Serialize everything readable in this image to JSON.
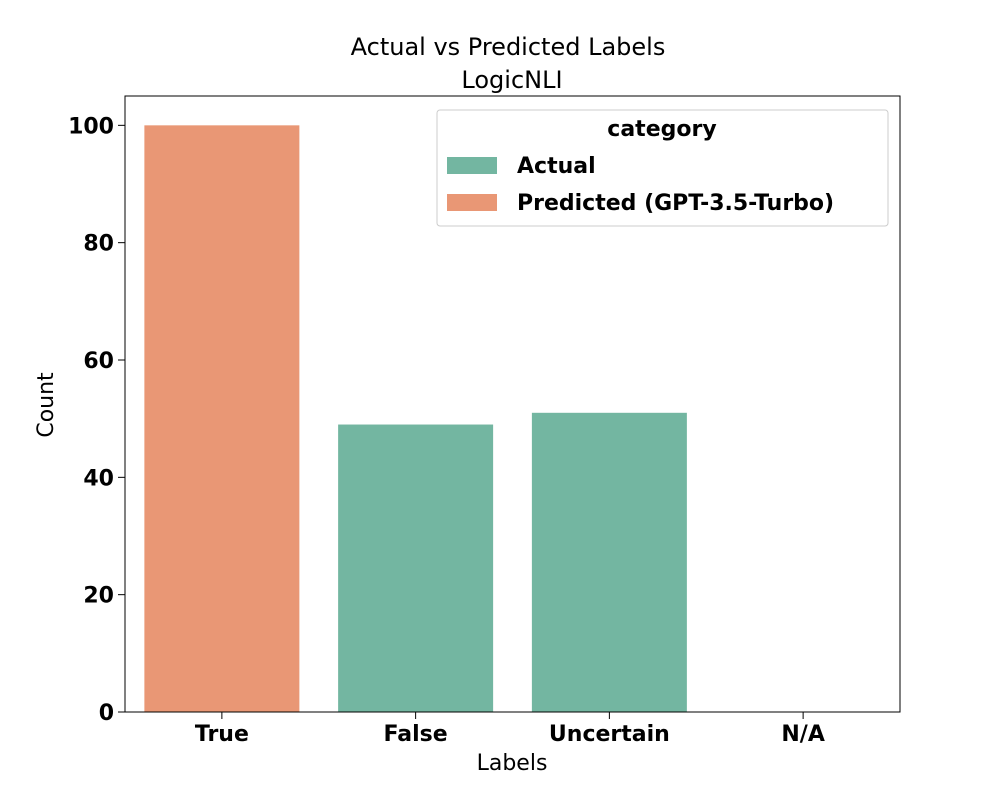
{
  "chart_data": {
    "type": "bar",
    "title": "Actual vs Predicted Labels",
    "subtitle": "LogicNLI",
    "xlabel": "Labels",
    "ylabel": "Count",
    "categories": [
      "True",
      "False",
      "Uncertain",
      "N/A"
    ],
    "ylim": [
      0,
      105
    ],
    "yticks": [
      0,
      20,
      40,
      60,
      80,
      100
    ],
    "grid": false,
    "legend": {
      "title": "category",
      "placement": "top-right",
      "entries": [
        "Actual",
        "Predicted (GPT-3.5-Turbo)"
      ]
    },
    "series": [
      {
        "name": "Actual",
        "color": "#73b6a1",
        "values": [
          0,
          49,
          51,
          0
        ]
      },
      {
        "name": "Predicted (GPT-3.5-Turbo)",
        "color": "#e99775",
        "values": [
          100,
          0,
          0,
          0
        ]
      }
    ]
  }
}
